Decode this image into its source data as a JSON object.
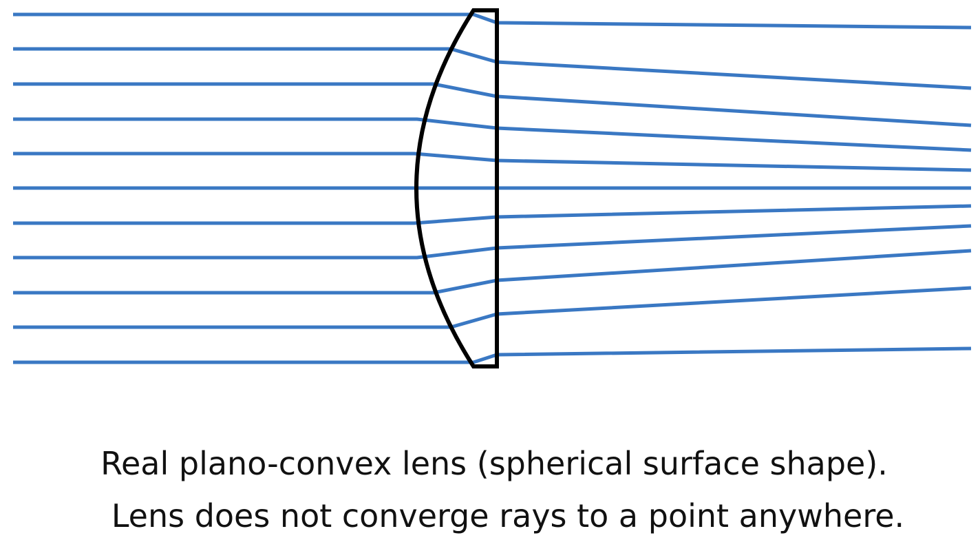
{
  "diagram": {
    "ray_color": "#3a78c3",
    "lens_color": "#000000",
    "lens": "plano-convex-lens",
    "ray_count": 11
  },
  "caption": {
    "line1": "Real plano-convex lens (spherical surface shape).",
    "line2": "Lens does not converge rays to a point anywhere."
  }
}
